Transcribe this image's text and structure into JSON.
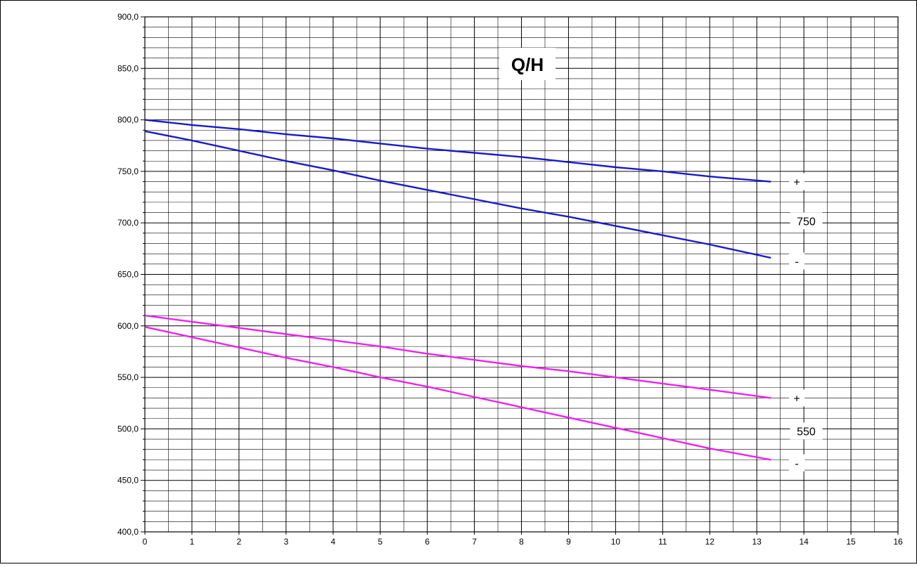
{
  "chart_data": {
    "type": "line",
    "title": "Q/H",
    "xlabel": "",
    "ylabel": "",
    "xlim": [
      0,
      16
    ],
    "ylim": [
      400,
      900
    ],
    "x_ticks": [
      "0",
      "1",
      "2",
      "3",
      "4",
      "5",
      "6",
      "7",
      "8",
      "9",
      "10",
      "11",
      "12",
      "13",
      "14",
      "15",
      "16"
    ],
    "y_ticks": [
      "400,0",
      "450,0",
      "500,0",
      "550,0",
      "600,0",
      "650,0",
      "700,0",
      "750,0",
      "800,0",
      "850,0",
      "900,0"
    ],
    "grid": true,
    "series": [
      {
        "color": "#1a1acc",
        "x": [
          0,
          1,
          2,
          3,
          4,
          5,
          6,
          7,
          8,
          9,
          10,
          11,
          12,
          13.3
        ],
        "values": [
          800,
          795,
          791,
          786,
          782,
          777,
          772,
          768,
          764,
          759,
          754,
          750,
          745,
          740
        ]
      },
      {
        "color": "#1a1acc",
        "x": [
          0,
          1,
          2,
          3,
          4,
          5,
          6,
          7,
          8,
          9,
          10,
          11,
          12,
          13.3
        ],
        "values": [
          789,
          780,
          770,
          760,
          751,
          741,
          732,
          723,
          714,
          706,
          697,
          688,
          679,
          666
        ]
      },
      {
        "color": "#ee22ee",
        "x": [
          0,
          1,
          2,
          3,
          4,
          5,
          6,
          7,
          8,
          9,
          10,
          11,
          12,
          13.3
        ],
        "values": [
          610,
          604,
          598,
          592,
          586,
          580,
          573,
          567,
          561,
          556,
          550,
          544,
          538,
          530
        ]
      },
      {
        "color": "#ee22ee",
        "x": [
          0,
          1,
          2,
          3,
          4,
          5,
          6,
          7,
          8,
          9,
          10,
          11,
          12,
          13.3
        ],
        "values": [
          599,
          589,
          579,
          569,
          560,
          550,
          541,
          531,
          521,
          511,
          501,
          491,
          481,
          470
        ]
      }
    ],
    "annotations": [
      {
        "text": "+",
        "x": 13.85,
        "y": 740
      },
      {
        "text": "-",
        "x": 13.85,
        "y": 663
      },
      {
        "text": "750",
        "x": 14.05,
        "y": 702
      },
      {
        "text": "+",
        "x": 13.85,
        "y": 530
      },
      {
        "text": "-",
        "x": 13.85,
        "y": 467
      },
      {
        "text": "550",
        "x": 14.05,
        "y": 498
      }
    ]
  }
}
